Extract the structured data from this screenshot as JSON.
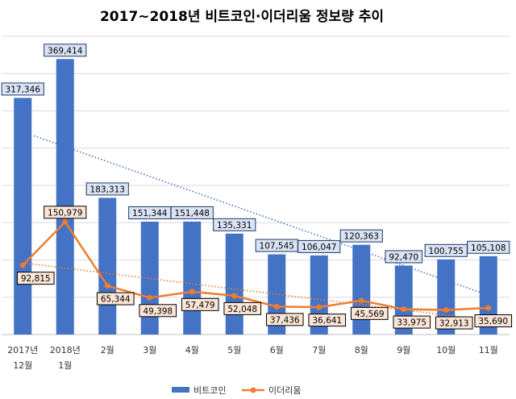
{
  "chart_data": {
    "type": "bar",
    "title": "2017~2018년 비트코인·이더리움 정보량 추이",
    "categories": [
      [
        "2017년",
        "12월"
      ],
      [
        "2018년",
        "1월"
      ],
      [
        "2월"
      ],
      [
        "3월"
      ],
      [
        "4월"
      ],
      [
        "5월"
      ],
      [
        "6월"
      ],
      [
        "7월"
      ],
      [
        "8월"
      ],
      [
        "9월"
      ],
      [
        "10월"
      ],
      [
        "11월"
      ]
    ],
    "series": [
      {
        "name": "비트코인",
        "type": "bar",
        "color": "#4472C4",
        "values": [
          317346,
          369414,
          183313,
          151344,
          151448,
          135331,
          107545,
          106047,
          120363,
          92470,
          100755,
          105108
        ],
        "labels": [
          "317,346",
          "369,414",
          "183,313",
          "151,344",
          "151,448",
          "135,331",
          "107,545",
          "106,047",
          "120,363",
          "92,470",
          "100,755",
          "105,108"
        ],
        "trendline": "linear"
      },
      {
        "name": "이더리움",
        "type": "line",
        "color": "#ED7D31",
        "values": [
          92815,
          150979,
          65344,
          49398,
          57479,
          52048,
          37436,
          36641,
          45569,
          33975,
          32913,
          35690
        ],
        "labels": [
          "92,815",
          "150,979",
          "65,344",
          "49,398",
          "57,479",
          "52,048",
          "37,436",
          "36,641",
          "45,569",
          "33,975",
          "32,913",
          "35,690"
        ],
        "trendline": "linear"
      }
    ],
    "ylim": [
      0,
      400000
    ],
    "grid": true,
    "legend": "bottom"
  }
}
